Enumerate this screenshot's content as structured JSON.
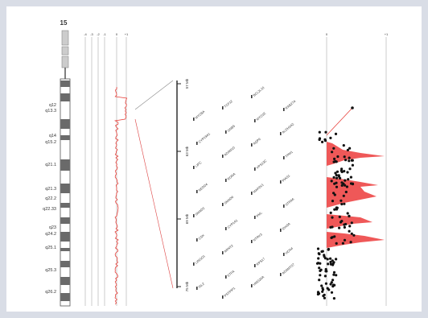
{
  "chromosome": {
    "number": "15",
    "bands": [
      "q12",
      "q13.3",
      "q14",
      "q15.2",
      "q21.1",
      "q21.3",
      "q22.2",
      "q22.33",
      "q23",
      "q24.2",
      "q25.1",
      "q25.3",
      "q26.2"
    ]
  },
  "log_ratio_ticks": [
    "-4",
    "-3",
    "-2",
    "-1",
    "0",
    "+1"
  ],
  "zoom_axis_ticks": [
    "57 Mb",
    "63 Mb",
    "69 Mb",
    "75 Mb"
  ],
  "right_axis_ticks": [
    "0",
    "+1"
  ],
  "genes": [
    [
      "MYO5A",
      "TCF12",
      "BCL2L10",
      "ARPP19"
    ],
    [
      "CYP19A1",
      "GNB5",
      "MYO1E",
      "RAB27A"
    ],
    [
      "LIPC",
      "ADAM10",
      "AQP9",
      "ALDH1A2"
    ],
    [
      "NEDD4",
      "RORA",
      "VPS13C",
      "TPM1"
    ],
    [
      "SMAD3",
      "SMAD6",
      "MAP2K1",
      "PIAS1"
    ],
    [
      "CSK",
      "CYP1A1",
      "PML",
      "STRA6"
    ],
    [
      "LINGO1",
      "ARNT2",
      "NTRK3",
      "IDH3A"
    ],
    [
      "ISL2",
      "ETFA",
      "RPS17",
      "HCN4"
    ],
    [
      "SCAPER",
      "PSTPIP1",
      "HMG20A",
      "ADAMTS7"
    ]
  ],
  "colors": {
    "trace": "#e8403a",
    "fill": "#ee4f4f",
    "points": "#111111",
    "grid": "#bfbfbf",
    "background": "#d9dde6"
  }
}
